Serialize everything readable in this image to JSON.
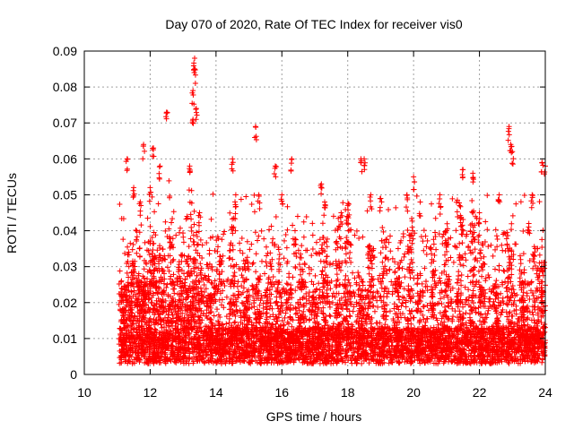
{
  "chart_data": {
    "type": "scatter",
    "title": "Day 070 of 2020, Rate Of TEC Index for receiver vis0",
    "xlabel": "GPS time / hours",
    "ylabel": "ROTI / TECUs",
    "xlim": [
      10,
      24
    ],
    "ylim": [
      0,
      0.09
    ],
    "x_ticks": [
      "10",
      "12",
      "14",
      "16",
      "18",
      "20",
      "22",
      "24"
    ],
    "y_ticks": [
      "0",
      "0.01",
      "0.02",
      "0.03",
      "0.04",
      "0.05",
      "0.06",
      "0.07",
      "0.08",
      "0.09"
    ],
    "grid": true,
    "marker": "+",
    "color": "#ff0000",
    "series": [
      {
        "name": "ROTI",
        "description": "Dense cloud of ROTI samples from ~11.0 h to 24 h, mostly 0.003-0.03 TECU with sporadic spikes",
        "x": [
          11.3,
          11.5,
          11.7,
          11.8,
          12.0,
          12.1,
          12.3,
          12.5,
          13.2,
          13.3,
          13.3,
          13.35,
          13.35,
          13.4,
          13.5,
          14.5,
          14.6,
          15.2,
          15.3,
          15.8,
          16.0,
          16.3,
          16.4,
          17.2,
          17.3,
          17.8,
          18.0,
          18.4,
          18.5,
          18.7,
          19.0,
          19.8,
          20.0,
          20.2,
          20.8,
          21.0,
          21.5,
          21.8,
          22.0,
          22.6,
          22.9,
          22.95,
          23.0,
          23.5,
          23.6,
          23.9,
          24.0
        ],
        "y": [
          0.06,
          0.052,
          0.048,
          0.064,
          0.052,
          0.063,
          0.058,
          0.073,
          0.058,
          0.071,
          0.079,
          0.085,
          0.088,
          0.074,
          0.045,
          0.06,
          0.05,
          0.069,
          0.05,
          0.058,
          0.05,
          0.06,
          0.04,
          0.053,
          0.048,
          0.045,
          0.044,
          0.06,
          0.06,
          0.05,
          0.049,
          0.05,
          0.055,
          0.048,
          0.05,
          0.04,
          0.057,
          0.056,
          0.045,
          0.05,
          0.069,
          0.064,
          0.062,
          0.042,
          0.05,
          0.059,
          0.058
        ]
      }
    ]
  }
}
